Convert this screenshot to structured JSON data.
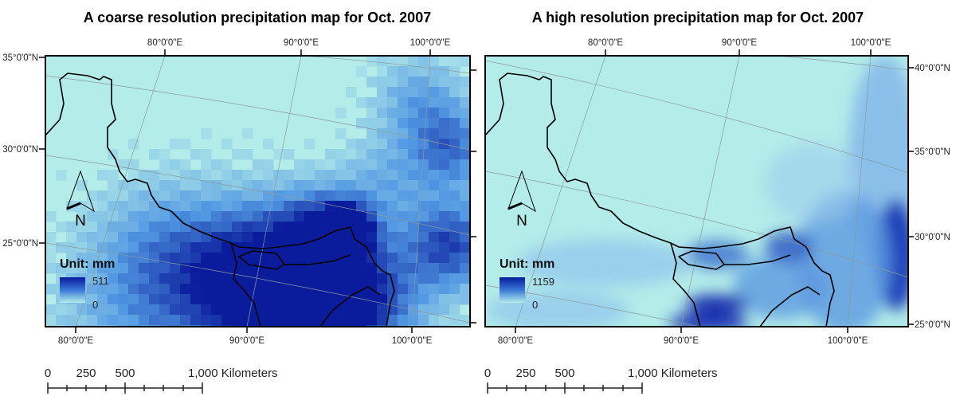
{
  "colors": {
    "base": "#b4ecea",
    "low": "#9fd0ee",
    "mid": "#3a78d8",
    "high": "#0a1c9c"
  },
  "maps": [
    {
      "title": "A coarse resolution precipitation map for Oct. 2007",
      "top_ticks": [
        "80°0'0\"E",
        "90°0'0\"E",
        "100°0'0\"E"
      ],
      "bottom_ticks": [
        "80°0'0\"E",
        "90°0'0\"E",
        "100°0'0\"E"
      ],
      "side_ticks": [
        "35°0'0\"N",
        "30°0'0\"N",
        "25°0'0\"N"
      ],
      "north_label": "N",
      "legend": {
        "title": "Unit: mm",
        "max": "511",
        "min": "0"
      },
      "scale": {
        "labels": [
          "0",
          "250",
          "500",
          "1,000 Kilometers"
        ]
      }
    },
    {
      "title": "A high resolution precipitation map for Oct. 2007",
      "top_ticks": [
        "80°0'0\"E",
        "90°0'0\"E",
        "100°0'0\"E"
      ],
      "bottom_ticks": [
        "80°0'0\"E",
        "90°0'0\"E",
        "100°0'0\"E"
      ],
      "side_ticks": [
        "40°0'0\"N",
        "35°0'0\"N",
        "30°0'0\"N",
        "25°0'0\"N"
      ],
      "north_label": "N",
      "legend": {
        "title": "Unit: mm",
        "max": "1159",
        "min": "0"
      },
      "scale": {
        "labels": [
          "0",
          "250",
          "500",
          "1,000 Kilometers"
        ]
      }
    }
  ]
}
